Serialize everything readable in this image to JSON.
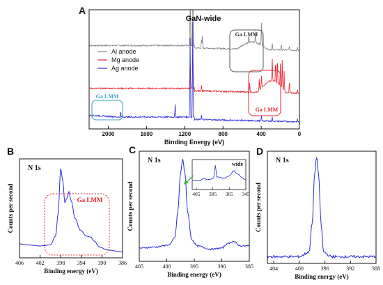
{
  "chart_data": [
    {
      "id": "A",
      "type": "line",
      "panel_label": "A",
      "title": "GaN-wide",
      "xlabel": "Binding Energy (eV)",
      "ylabel": "",
      "xlim": [
        2200,
        0
      ],
      "x_ticks": [
        2000,
        1600,
        1200,
        800,
        400,
        0
      ],
      "x_tick_labels": [
        "2000",
        "1600",
        "1200",
        "800",
        "400",
        "0"
      ],
      "grid": false,
      "legend": {
        "placement": "upper-left"
      },
      "series": [
        {
          "name": "Al anode",
          "color": "#808080",
          "baseline": 0.7,
          "peaks": [
            [
              1116,
              0.88
            ],
            [
              1143,
              0.62
            ],
            [
              1025,
              0.08
            ],
            [
              1015,
              0.12
            ],
            [
              530,
              0.07
            ],
            [
              460,
              0.09
            ],
            [
              397,
              0.22
            ],
            [
              285,
              0.06
            ],
            [
              190,
              0.05
            ],
            [
              105,
              0.04
            ],
            [
              20,
              0.03
            ]
          ]
        },
        {
          "name": "Mg anode",
          "color": "#e8242c",
          "baseline": 0.34,
          "peaks": [
            [
              1116,
              0.4
            ],
            [
              1143,
              0.25
            ],
            [
              1025,
              0.06
            ],
            [
              520,
              0.08
            ],
            [
              420,
              0.1
            ],
            [
              397,
              0.12
            ],
            [
              285,
              0.22
            ],
            [
              250,
              0.2
            ],
            [
              230,
              0.24
            ],
            [
              200,
              0.18
            ],
            [
              180,
              0.23
            ],
            [
              160,
              0.16
            ],
            [
              105,
              0.1
            ],
            [
              20,
              0.03
            ]
          ]
        },
        {
          "name": "Ag anode",
          "color": "#2a2ad8",
          "baseline": 0.1,
          "peaks": [
            [
              1870,
              0.05
            ],
            [
              1300,
              0.1
            ],
            [
              1143,
              0.8
            ],
            [
              1116,
              0.8
            ],
            [
              1025,
              0.04
            ],
            [
              397,
              0.05
            ],
            [
              285,
              0.04
            ],
            [
              20,
              0.02
            ]
          ]
        }
      ],
      "annotations": [
        {
          "text": "Ga LMM",
          "color": "#333333",
          "near_x": 450,
          "box": "gray-rounded"
        },
        {
          "text": "Ga LMM",
          "color": "#e8242c",
          "near_x": 300,
          "box": "red-rounded"
        },
        {
          "text": "Ga LMM",
          "color": "#3aa0c0",
          "near_x": 1950,
          "box": "teal-rounded"
        }
      ]
    },
    {
      "id": "B",
      "type": "line",
      "panel_label": "B",
      "title": "N 1s",
      "xlabel": "Binding energy (eV)",
      "ylabel": "Counts per second",
      "xlim": [
        406,
        386
      ],
      "x_ticks": [
        406,
        402,
        398,
        394,
        390,
        386
      ],
      "x_tick_labels": [
        "406",
        "402",
        "398",
        "394",
        "390",
        "386"
      ],
      "grid": false,
      "series": [
        {
          "name": "",
          "color": "#2a2ad8",
          "points": [
            [
              406,
              0.14
            ],
            [
              404,
              0.13
            ],
            [
              402,
              0.12
            ],
            [
              400,
              0.13
            ],
            [
              399,
              0.22
            ],
            [
              398.5,
              0.45
            ],
            [
              398.0,
              0.9
            ],
            [
              397.6,
              0.78
            ],
            [
              397.2,
              0.56
            ],
            [
              396.8,
              0.6
            ],
            [
              396.4,
              0.67
            ],
            [
              396.0,
              0.58
            ],
            [
              395.2,
              0.4
            ],
            [
              394.2,
              0.28
            ],
            [
              393.0,
              0.22
            ],
            [
              392.2,
              0.21
            ],
            [
              391.5,
              0.17
            ],
            [
              390.5,
              0.11
            ],
            [
              389,
              0.08
            ],
            [
              386,
              0.06
            ]
          ]
        }
      ],
      "annotations": [
        {
          "text": "Ga LMM",
          "color": "#e8242c",
          "box": "red-dotted-rounded"
        }
      ]
    },
    {
      "id": "C",
      "type": "line",
      "panel_label": "C",
      "title": "N 1s",
      "xlabel": "Binding energy (eV)",
      "ylabel": "Counts per second",
      "xlim": [
        405,
        385
      ],
      "x_ticks": [
        405,
        400,
        395,
        390,
        385
      ],
      "x_tick_labels": [
        "405",
        "400",
        "395",
        "390",
        "385"
      ],
      "grid": false,
      "series": [
        {
          "name": "",
          "color": "#2a2ad8",
          "points": [
            [
              405,
              0.12
            ],
            [
              402,
              0.13
            ],
            [
              399.5,
              0.15
            ],
            [
              398.5,
              0.22
            ],
            [
              398.0,
              0.45
            ],
            [
              397.5,
              0.8
            ],
            [
              397.1,
              0.93
            ],
            [
              396.7,
              0.8
            ],
            [
              396.2,
              0.45
            ],
            [
              395.5,
              0.2
            ],
            [
              394.5,
              0.14
            ],
            [
              392,
              0.11
            ],
            [
              390,
              0.12
            ],
            [
              389,
              0.16
            ],
            [
              388,
              0.18
            ],
            [
              386.5,
              0.14
            ],
            [
              385,
              0.14
            ]
          ]
        }
      ],
      "inset": {
        "label": "wide",
        "xlim": [
          410,
          345
        ],
        "x_ticks": [
          405,
          385,
          365,
          345
        ],
        "x_tick_labels": [
          "405",
          "385",
          "365",
          "345"
        ],
        "series": [
          {
            "name": "",
            "color": "#2a2ad8",
            "points": [
              [
                410,
                0.3
              ],
              [
                400,
                0.3
              ],
              [
                397,
                0.36
              ],
              [
                390,
                0.33
              ],
              [
                384,
                0.38
              ],
              [
                382,
                0.8
              ],
              [
                380,
                0.42
              ],
              [
                372,
                0.38
              ],
              [
                365,
                0.45
              ],
              [
                360,
                0.62
              ],
              [
                355,
                0.52
              ],
              [
                350,
                0.4
              ],
              [
                345,
                0.32
              ]
            ]
          }
        ]
      }
    },
    {
      "id": "D",
      "type": "line",
      "panel_label": "D",
      "title": "N 1s",
      "xlabel": "Binding energy (eV)",
      "ylabel": "Counts per second",
      "xlim": [
        405,
        388
      ],
      "x_ticks": [
        404,
        400,
        396,
        392,
        388
      ],
      "x_tick_labels": [
        "404",
        "400",
        "396",
        "392",
        "388"
      ],
      "grid": false,
      "series": [
        {
          "name": "",
          "color": "#2a2ad8",
          "points": [
            [
              405,
              0.06
            ],
            [
              400,
              0.06
            ],
            [
              398.5,
              0.1
            ],
            [
              398.0,
              0.35
            ],
            [
              397.6,
              0.8
            ],
            [
              397.3,
              0.95
            ],
            [
              397.0,
              0.8
            ],
            [
              396.6,
              0.35
            ],
            [
              396.2,
              0.1
            ],
            [
              395,
              0.06
            ],
            [
              388,
              0.06
            ]
          ]
        }
      ]
    }
  ]
}
